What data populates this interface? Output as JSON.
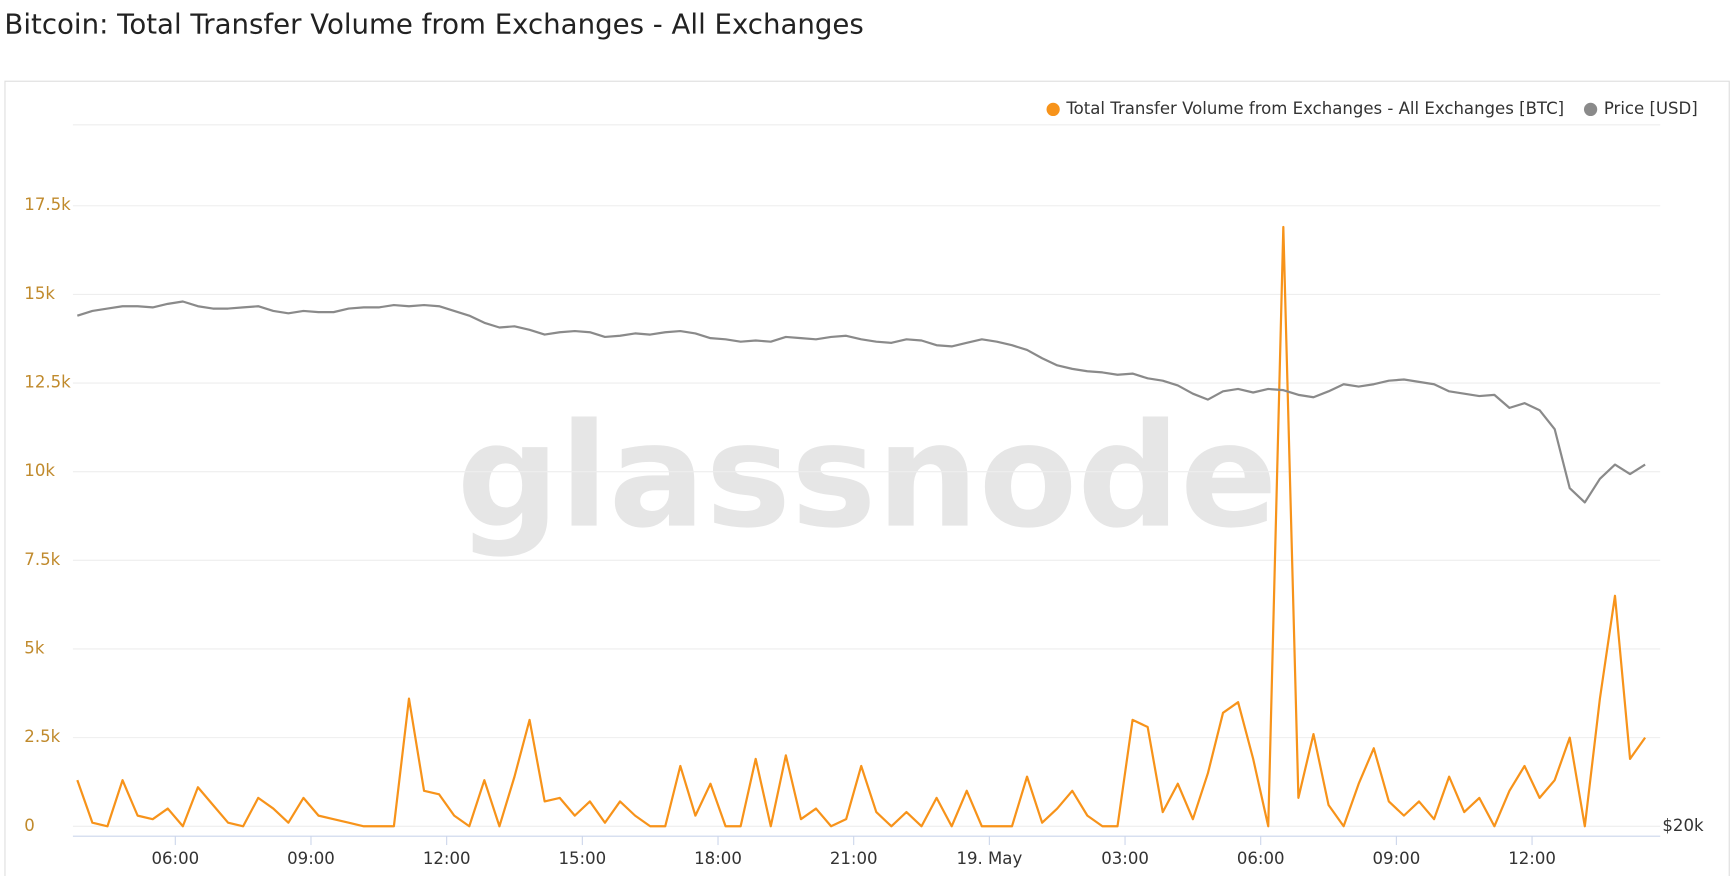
{
  "chart_data": {
    "type": "line",
    "title": "Bitcoin: Total Transfer Volume from Exchanges - All Exchanges",
    "watermark": "glassnode",
    "legend": "top-right",
    "grid": true,
    "x": [
      230,
      250,
      270,
      290,
      310,
      330,
      350,
      370,
      390,
      410,
      430,
      450,
      470,
      490,
      510,
      530,
      550,
      570,
      590,
      610,
      630,
      650,
      670,
      690,
      710,
      730,
      750,
      770,
      790,
      810,
      830,
      850,
      870,
      890,
      910,
      930,
      950,
      970,
      990,
      1010,
      1030,
      1050,
      1070,
      1090,
      1110,
      1130,
      1150,
      1170,
      1190,
      1210,
      1230,
      1250,
      1270,
      1290,
      1310,
      1330,
      1350,
      1370,
      1390,
      1410,
      1430,
      1450,
      1470,
      1490,
      1510,
      1530,
      1550,
      1570,
      1590,
      1610,
      1630,
      1650,
      1670,
      1690,
      1710,
      1730,
      1750,
      1770,
      1790,
      1810,
      1830,
      1850,
      1870,
      1890,
      1910,
      1930,
      1950,
      1970,
      1990,
      2010,
      2030,
      2050,
      2070,
      2090,
      2110,
      2130,
      2150,
      2170,
      2190,
      2210,
      2230,
      2250,
      2270,
      2290,
      2310
    ],
    "xlim": [
      230,
      2330
    ],
    "xticks": [
      {
        "value": 360,
        "label": "06:00"
      },
      {
        "value": 540,
        "label": "09:00"
      },
      {
        "value": 720,
        "label": "12:00"
      },
      {
        "value": 900,
        "label": "15:00"
      },
      {
        "value": 1080,
        "label": "18:00"
      },
      {
        "value": 1260,
        "label": "21:00"
      },
      {
        "value": 1440,
        "label": "19. May"
      },
      {
        "value": 1620,
        "label": "03:00"
      },
      {
        "value": 1800,
        "label": "06:00"
      },
      {
        "value": 1980,
        "label": "09:00"
      },
      {
        "value": 2160,
        "label": "12:00"
      }
    ],
    "ylim": [
      0,
      20000
    ],
    "yticks": [
      0,
      {
        "value": 2500,
        "label": "2.5k"
      },
      {
        "value": 5000,
        "label": "5k"
      },
      {
        "value": 7500,
        "label": "7.5k"
      },
      {
        "value": 10000,
        "label": "10k"
      },
      {
        "value": 12500,
        "label": "12.5k"
      },
      {
        "value": 15000,
        "label": "15k"
      },
      {
        "value": 17500,
        "label": "17.5k"
      }
    ],
    "y2lim": [
      20000,
      50000
    ],
    "y2ticks": [
      {
        "value": 20000,
        "label": "$20k"
      }
    ],
    "series": [
      {
        "name": "Total Transfer Volume from Exchanges - All Exchanges [BTC]",
        "color": "#f7931a",
        "values": [
          1300,
          100,
          0,
          1300,
          300,
          200,
          500,
          0,
          1100,
          600,
          100,
          0,
          800,
          500,
          100,
          800,
          300,
          200,
          100,
          0,
          0,
          0,
          3600,
          1000,
          900,
          300,
          0,
          1300,
          0,
          1400,
          3000,
          700,
          800,
          300,
          700,
          100,
          700,
          300,
          0,
          0,
          1700,
          300,
          1200,
          0,
          0,
          1900,
          0,
          2000,
          200,
          500,
          0,
          200,
          1700,
          400,
          0,
          400,
          0,
          800,
          0,
          1000,
          0,
          0,
          0,
          1400,
          100,
          500,
          1000,
          300,
          0,
          0,
          3000,
          2800,
          400,
          1200,
          200,
          1500,
          3200,
          3500,
          1900,
          0,
          16900,
          800,
          2600,
          600,
          0,
          1200,
          2200,
          700,
          300,
          700,
          200,
          1400,
          400,
          800,
          0,
          1000,
          1700,
          800,
          1300,
          2500,
          0,
          3600,
          6500,
          1900,
          2500
        ]
      },
      {
        "name": "Price [USD]",
        "color": "#8a8a8a",
        "axis": "y2",
        "values": [
          41600,
          41800,
          41900,
          42000,
          42000,
          41950,
          42100,
          42200,
          42000,
          41900,
          41900,
          41950,
          42000,
          41800,
          41700,
          41800,
          41750,
          41750,
          41900,
          41950,
          41950,
          42050,
          42000,
          42050,
          42000,
          41800,
          41600,
          41300,
          41100,
          41150,
          41000,
          40800,
          40900,
          40950,
          40900,
          40700,
          40750,
          40850,
          40800,
          40900,
          40950,
          40850,
          40650,
          40600,
          40500,
          40550,
          40500,
          40700,
          40650,
          40600,
          40700,
          40750,
          40600,
          40500,
          40450,
          40600,
          40550,
          40350,
          40300,
          40450,
          40600,
          40500,
          40350,
          40150,
          39800,
          39500,
          39350,
          39250,
          39200,
          39100,
          39150,
          38950,
          38850,
          38650,
          38300,
          38050,
          38400,
          38500,
          38350,
          38500,
          38450,
          38250,
          38150,
          38400,
          38700,
          38600,
          38700,
          38850,
          38900,
          38800,
          38700,
          38400,
          38300,
          38200,
          38250,
          37700,
          37900,
          37600,
          36800,
          34300,
          33700,
          34700,
          35300,
          34900,
          35300
        ]
      }
    ]
  }
}
